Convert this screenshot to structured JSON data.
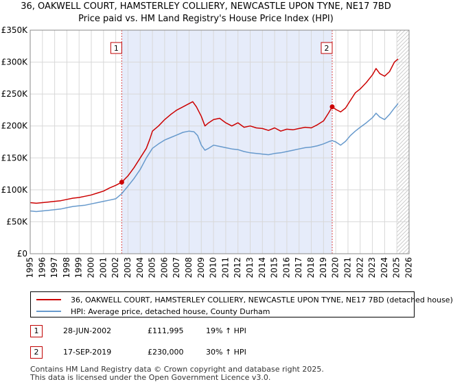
{
  "chart_data": {
    "type": "line",
    "title": "36, OAKWELL COURT, HAMSTERLEY COLLIERY, NEWCASTLE UPON TYNE, NE17 7BD",
    "subtitle": "Price paid vs. HM Land Registry's House Price Index (HPI)",
    "xlim": [
      1995,
      2026
    ],
    "ylim": [
      0,
      350000
    ],
    "y_ticks": [
      0,
      50000,
      100000,
      150000,
      200000,
      250000,
      300000,
      350000
    ],
    "y_tick_labels": [
      "£0",
      "£50K",
      "£100K",
      "£150K",
      "£200K",
      "£250K",
      "£300K",
      "£350K"
    ],
    "x_ticks": [
      1995,
      1996,
      1997,
      1998,
      1999,
      2000,
      2001,
      2002,
      2003,
      2004,
      2005,
      2006,
      2007,
      2008,
      2009,
      2010,
      2011,
      2012,
      2013,
      2014,
      2015,
      2016,
      2017,
      2018,
      2019,
      2020,
      2021,
      2022,
      2023,
      2024,
      2025,
      2026
    ],
    "shaded_period": [
      2002.49,
      2019.71
    ],
    "hatched_from": 2025.0,
    "series": [
      {
        "name": "36, OAKWELL COURT, HAMSTERLEY COLLIERY, NEWCASTLE UPON TYNE, NE17 7BD (detached house)",
        "color": "#cc0000",
        "points": [
          [
            1995.0,
            80000
          ],
          [
            1995.5,
            79000
          ],
          [
            1996.0,
            80000
          ],
          [
            1996.5,
            81000
          ],
          [
            1997.0,
            82000
          ],
          [
            1997.5,
            83000
          ],
          [
            1998.0,
            85000
          ],
          [
            1998.5,
            87000
          ],
          [
            1999.0,
            88000
          ],
          [
            1999.5,
            90000
          ],
          [
            2000.0,
            92000
          ],
          [
            2000.5,
            95000
          ],
          [
            2001.0,
            98000
          ],
          [
            2001.5,
            103000
          ],
          [
            2002.0,
            107000
          ],
          [
            2002.49,
            111995
          ],
          [
            2003.0,
            122000
          ],
          [
            2003.5,
            135000
          ],
          [
            2004.0,
            150000
          ],
          [
            2004.5,
            165000
          ],
          [
            2004.8,
            180000
          ],
          [
            2005.0,
            192000
          ],
          [
            2005.5,
            200000
          ],
          [
            2006.0,
            210000
          ],
          [
            2006.5,
            218000
          ],
          [
            2007.0,
            225000
          ],
          [
            2007.5,
            230000
          ],
          [
            2008.0,
            235000
          ],
          [
            2008.3,
            238000
          ],
          [
            2008.6,
            230000
          ],
          [
            2009.0,
            215000
          ],
          [
            2009.3,
            200000
          ],
          [
            2009.6,
            205000
          ],
          [
            2010.0,
            210000
          ],
          [
            2010.5,
            212000
          ],
          [
            2011.0,
            205000
          ],
          [
            2011.5,
            200000
          ],
          [
            2012.0,
            205000
          ],
          [
            2012.5,
            198000
          ],
          [
            2013.0,
            200000
          ],
          [
            2013.5,
            197000
          ],
          [
            2014.0,
            196000
          ],
          [
            2014.5,
            193000
          ],
          [
            2015.0,
            197000
          ],
          [
            2015.5,
            192000
          ],
          [
            2016.0,
            195000
          ],
          [
            2016.5,
            194000
          ],
          [
            2017.0,
            196000
          ],
          [
            2017.5,
            198000
          ],
          [
            2018.0,
            197000
          ],
          [
            2018.5,
            202000
          ],
          [
            2019.0,
            208000
          ],
          [
            2019.4,
            220000
          ],
          [
            2019.71,
            230000
          ],
          [
            2020.0,
            226000
          ],
          [
            2020.4,
            222000
          ],
          [
            2020.8,
            228000
          ],
          [
            2021.2,
            240000
          ],
          [
            2021.6,
            252000
          ],
          [
            2022.0,
            258000
          ],
          [
            2022.5,
            268000
          ],
          [
            2023.0,
            280000
          ],
          [
            2023.3,
            290000
          ],
          [
            2023.6,
            282000
          ],
          [
            2024.0,
            278000
          ],
          [
            2024.4,
            285000
          ],
          [
            2024.8,
            300000
          ],
          [
            2025.1,
            305000
          ]
        ]
      },
      {
        "name": "HPI: Average price, detached house, County Durham",
        "color": "#6699cc",
        "points": [
          [
            1995.0,
            67000
          ],
          [
            1995.5,
            66000
          ],
          [
            1996.0,
            67000
          ],
          [
            1996.5,
            68000
          ],
          [
            1997.0,
            69000
          ],
          [
            1997.5,
            70000
          ],
          [
            1998.0,
            72000
          ],
          [
            1998.5,
            74000
          ],
          [
            1999.0,
            75000
          ],
          [
            1999.5,
            76000
          ],
          [
            2000.0,
            78000
          ],
          [
            2000.5,
            80000
          ],
          [
            2001.0,
            82000
          ],
          [
            2001.5,
            84000
          ],
          [
            2002.0,
            86000
          ],
          [
            2002.49,
            94000
          ],
          [
            2003.0,
            106000
          ],
          [
            2003.5,
            118000
          ],
          [
            2004.0,
            132000
          ],
          [
            2004.5,
            150000
          ],
          [
            2005.0,
            165000
          ],
          [
            2005.5,
            172000
          ],
          [
            2006.0,
            178000
          ],
          [
            2006.5,
            182000
          ],
          [
            2007.0,
            186000
          ],
          [
            2007.5,
            190000
          ],
          [
            2008.0,
            192000
          ],
          [
            2008.4,
            191000
          ],
          [
            2008.7,
            185000
          ],
          [
            2009.0,
            170000
          ],
          [
            2009.3,
            162000
          ],
          [
            2009.6,
            165000
          ],
          [
            2010.0,
            170000
          ],
          [
            2010.5,
            168000
          ],
          [
            2011.0,
            166000
          ],
          [
            2011.5,
            164000
          ],
          [
            2012.0,
            163000
          ],
          [
            2012.5,
            160000
          ],
          [
            2013.0,
            158000
          ],
          [
            2013.5,
            157000
          ],
          [
            2014.0,
            156000
          ],
          [
            2014.5,
            155000
          ],
          [
            2015.0,
            157000
          ],
          [
            2015.5,
            158000
          ],
          [
            2016.0,
            160000
          ],
          [
            2016.5,
            162000
          ],
          [
            2017.0,
            164000
          ],
          [
            2017.5,
            166000
          ],
          [
            2018.0,
            167000
          ],
          [
            2018.5,
            169000
          ],
          [
            2019.0,
            172000
          ],
          [
            2019.5,
            176000
          ],
          [
            2019.71,
            177000
          ],
          [
            2020.0,
            175000
          ],
          [
            2020.4,
            170000
          ],
          [
            2020.8,
            176000
          ],
          [
            2021.2,
            185000
          ],
          [
            2021.6,
            192000
          ],
          [
            2022.0,
            198000
          ],
          [
            2022.5,
            205000
          ],
          [
            2023.0,
            213000
          ],
          [
            2023.3,
            220000
          ],
          [
            2023.6,
            214000
          ],
          [
            2024.0,
            210000
          ],
          [
            2024.4,
            218000
          ],
          [
            2024.8,
            228000
          ],
          [
            2025.1,
            235000
          ]
        ]
      }
    ],
    "sales": [
      {
        "label": "1",
        "date": "28-JUN-2002",
        "x": 2002.49,
        "price": "£111,995",
        "value": 111995,
        "hpi": "19% ↑ HPI"
      },
      {
        "label": "2",
        "date": "17-SEP-2019",
        "x": 2019.71,
        "price": "£230,000",
        "value": 230000,
        "hpi": "30% ↑ HPI"
      }
    ]
  },
  "footer": {
    "line1": "Contains HM Land Registry data © Crown copyright and database right 2025.",
    "line2": "This data is licensed under the Open Government Licence v3.0."
  }
}
